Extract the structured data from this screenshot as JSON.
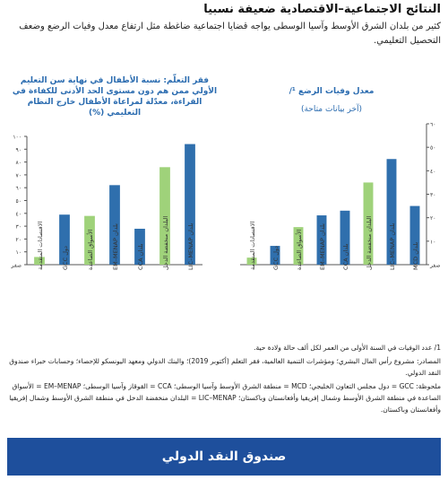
{
  "title": "النتائج الاجتماعية–الاقتصادية ضعيفة نسبيا",
  "intro": "كثير من بلدان الشرق الأوسط وآسيا الوسطى يواجه قضايا اجتماعية ضاغطة مثل ارتفاع معدل وفيات الرضع وضعف التحصيل التعليمي.",
  "chart_data": [
    {
      "type": "bar",
      "title": "معدل وفيات الرضع ¹/",
      "subtitle": "(آخر بيانات متاحة)",
      "categories": [
        "الاقتصادات المتقدمة",
        "دول GCC",
        "الأسواق الصاعدة",
        "بلدان EM–MENAP",
        "بلدان CCA",
        "البلدان منخفضة الدخل",
        "بلدان LIC–MENAP",
        "بلدان MCD"
      ],
      "values": [
        3,
        8,
        16,
        21,
        23,
        35,
        45,
        25
      ],
      "colors": [
        "#9fd27a",
        "#2f6fad",
        "#9fd27a",
        "#2f6fad",
        "#2f6fad",
        "#9fd27a",
        "#2f6fad",
        "#2f6fad"
      ],
      "ylim": [
        0,
        60
      ],
      "yticks": [
        "صفر",
        "١٠",
        "٢٠",
        "٣٠",
        "٤٠",
        "٥٠",
        "٦٠"
      ]
    },
    {
      "type": "bar",
      "title": "فقر التعلّم: نسبة الأطفال في نهاية سن التعليم الأولي ممن هم دون مستوى الحد الأدنى للكفاءة في القراءة، معدّلة لمراعاة الأطفال خارج النظام التعليمي (%)",
      "categories": [
        "الاقتصادات المتقدمة",
        "دول GCC",
        "الأسواق الصاعدة",
        "بلدان EM–MENAP",
        "بلدان CCA",
        "البلدان منخفضة الدخل",
        "بلدان LIC–MENAP"
      ],
      "values": [
        6,
        39,
        38,
        62,
        28,
        76,
        94
      ],
      "colors": [
        "#9fd27a",
        "#2f6fad",
        "#9fd27a",
        "#2f6fad",
        "#2f6fad",
        "#9fd27a",
        "#2f6fad"
      ],
      "ylim": [
        0,
        100
      ],
      "yticks": [
        "صفر",
        "١٠",
        "٢٠",
        "٣٠",
        "٤٠",
        "٥٠",
        "٦٠",
        "٧٠",
        "٨٠",
        "٩٠",
        "١٠٠"
      ]
    }
  ],
  "notes": {
    "n1": "1/ عدد الوفيات في السنة الأولى من العمر لكل ألف حالة ولادة حية.",
    "sources": "المصادر: مشروع رأس المال البشري؛ ومؤشرات التنمية العالمية، فقر التعلم (أكتوبر 2019)؛ والبنك الدولي ومعهد اليونسكو للإحصاء؛ وحسابات خبراء صندوق النقد الدولي.",
    "abbr": "ملحوظة: GCC = دول مجلس التعاون الخليجي؛ MCD = منطقة الشرق الأوسط وآسيا الوسطى؛ CCA = القوقاز وآسيا الوسطى؛ EM–MENAP = الأسواق الصاعدة في منطقة الشرق الأوسط وشمال إفريقيا وأفغانستان وباكستان؛ LIC–MENAP = البلدان منخفضة الدخل في منطقة الشرق الأوسط وشمال إفريقيا وأفغانستان وباكستان."
  },
  "footer": "صندوق النقد الدولي"
}
